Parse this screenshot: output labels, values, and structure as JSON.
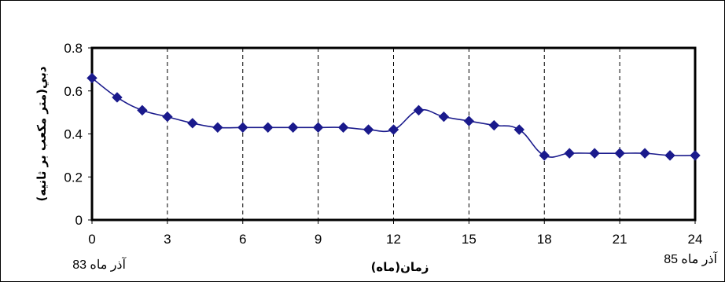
{
  "chart_data": {
    "type": "line",
    "title": "",
    "xlabel": "زمان(ماه)",
    "ylabel": "دبي(متر مكعب بر ثانيه)",
    "xlim": [
      0,
      24
    ],
    "ylim": [
      0,
      0.8
    ],
    "x_ticks": [
      "0",
      "3",
      "6",
      "9",
      "12",
      "15",
      "18",
      "21",
      "24"
    ],
    "y_ticks": [
      "0",
      "0.2",
      "0.4",
      "0.6",
      "0.8"
    ],
    "grid": "vertical-dashed",
    "legend": "none",
    "start_label": "آذر ماه 83",
    "end_label": "آذر ماه 85",
    "marker": "diamond",
    "series_color": "#1a1a8c",
    "series": [
      {
        "x": [
          0,
          1,
          2,
          3,
          4,
          5,
          6,
          7,
          8,
          9,
          10,
          11,
          12,
          13,
          14,
          15,
          16,
          17,
          18,
          19,
          20,
          21,
          22,
          23,
          24
        ],
        "values": [
          0.66,
          0.57,
          0.51,
          0.48,
          0.45,
          0.43,
          0.43,
          0.43,
          0.43,
          0.43,
          0.43,
          0.42,
          0.42,
          0.51,
          0.48,
          0.46,
          0.44,
          0.42,
          0.3,
          0.31,
          0.31,
          0.31,
          0.31,
          0.3,
          0.3
        ]
      }
    ]
  }
}
